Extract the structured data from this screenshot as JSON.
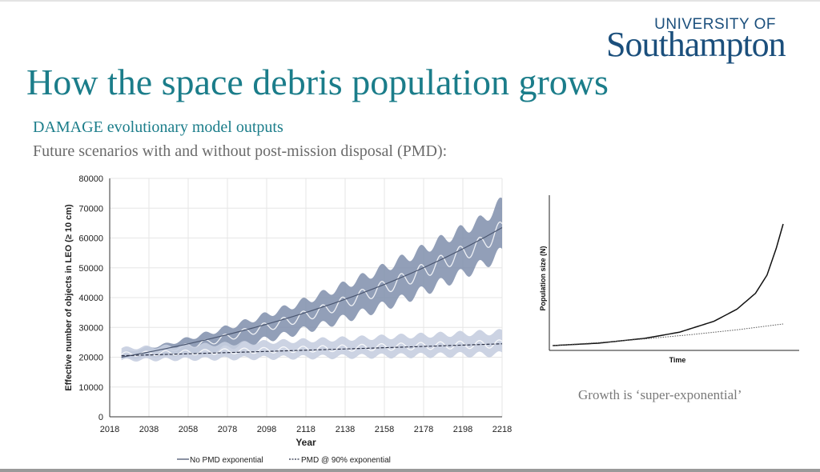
{
  "logo": {
    "top": "UNIVERSITY OF",
    "name": "Southampton"
  },
  "slide": {
    "title": "How the space debris population grows",
    "subtitle": "DAMAGE evolutionary model outputs",
    "subtitle2": "Future scenarios with and without post-mission disposal (PMD):",
    "caption": "Growth is ‘super-exponential’"
  },
  "colors": {
    "title": "#1b7d8a",
    "logo": "#1b4f7c",
    "band_no_pmd": "#7f8eab",
    "band_pmd": "#c6cee0"
  },
  "chart_data": [
    {
      "type": "line",
      "title": "",
      "xlabel": "Year",
      "ylabel": "Effective number of objects in LEO (≥ 10 cm)",
      "xlim": [
        2018,
        2218
      ],
      "ylim": [
        0,
        80000
      ],
      "xticks": [
        2018,
        2038,
        2058,
        2078,
        2098,
        2118,
        2138,
        2158,
        2178,
        2198,
        2218
      ],
      "yticks": [
        0,
        10000,
        20000,
        30000,
        40000,
        50000,
        60000,
        70000,
        80000
      ],
      "grid": true,
      "legend_position": "bottom",
      "series": [
        {
          "name": "No PMD exponential",
          "style": "solid",
          "color": "#4a5670",
          "x": [
            2024,
            2218
          ],
          "y": [
            20000,
            63500
          ],
          "band_color": "#7f8eab",
          "mean_x": [
            2024,
            2048,
            2068,
            2088,
            2108,
            2128,
            2148,
            2168,
            2188,
            2208,
            2218
          ],
          "mean_y": [
            20500,
            22500,
            25000,
            28500,
            32000,
            36000,
            41000,
            46000,
            52000,
            58000,
            63000
          ],
          "band_low_y": [
            19500,
            20500,
            22000,
            24500,
            27500,
            31000,
            35000,
            39500,
            45000,
            51000,
            55000
          ],
          "band_high_y": [
            21500,
            24500,
            28000,
            32000,
            36500,
            41500,
            47000,
            53000,
            59500,
            66000,
            72000
          ]
        },
        {
          "name": "PMD @ 90% exponential",
          "style": "dashed",
          "color": "#2a3046",
          "x": [
            2024,
            2218
          ],
          "y": [
            20500,
            24500
          ],
          "band_color": "#c6cee0",
          "mean_x": [
            2024,
            2218
          ],
          "mean_y": [
            21000,
            24500
          ],
          "band_low_y": [
            19000,
            21000
          ],
          "band_high_y": [
            23000,
            28500
          ]
        }
      ]
    },
    {
      "type": "line",
      "title": "",
      "xlabel": "Time",
      "ylabel": "Population size (N)",
      "grid": false,
      "series": [
        {
          "name": "",
          "style": "solid",
          "color": "#111111",
          "x": [
            0,
            0.2,
            0.4,
            0.55,
            0.7,
            0.8,
            0.88,
            0.93,
            0.97,
            1.0
          ],
          "y": [
            0.0,
            0.02,
            0.06,
            0.11,
            0.2,
            0.3,
            0.43,
            0.58,
            0.8,
            1.0
          ]
        },
        {
          "name": "",
          "style": "dotted",
          "color": "#555555",
          "x": [
            0,
            0.2,
            0.4,
            0.6,
            0.8,
            1.0
          ],
          "y": [
            0.0,
            0.025,
            0.055,
            0.09,
            0.13,
            0.178
          ]
        }
      ]
    }
  ]
}
